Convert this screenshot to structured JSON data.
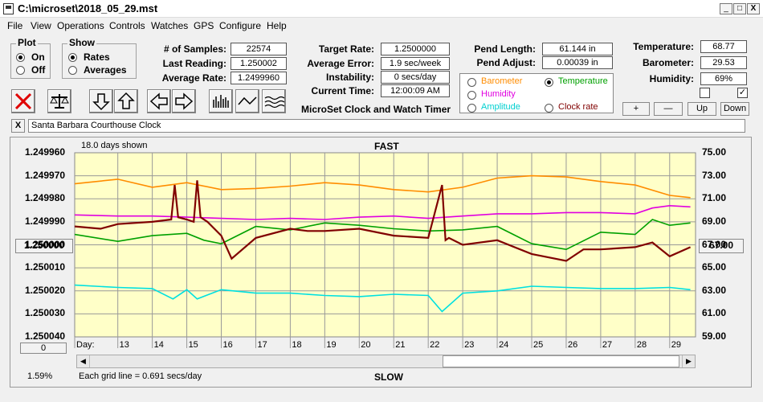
{
  "window": {
    "title": "C:\\microset\\2018_05_29.mst",
    "minimize": "_",
    "maximize": "□",
    "close": "X"
  },
  "menu": [
    "File",
    "View",
    "Operations",
    "Controls",
    "Watches",
    "GPS",
    "Configure",
    "Help"
  ],
  "plot_group": {
    "title": "Plot",
    "options": [
      "On",
      "Off"
    ],
    "selected": "On"
  },
  "show_group": {
    "title": "Show",
    "options": [
      "Rates",
      "Averages"
    ],
    "selected": "Rates"
  },
  "stats": {
    "samples_label": "# of Samples:",
    "samples": "22574",
    "last_reading_label": "Last Reading:",
    "last_reading": "1.250002",
    "average_rate_label": "Average Rate:",
    "average_rate": "1.2499960"
  },
  "rates": {
    "target_rate_label": "Target Rate:",
    "target_rate": "1.2500000",
    "average_error_label": "Average Error:",
    "average_error": "1.9 sec/week",
    "instability_label": "Instability:",
    "instability": "0 secs/day",
    "current_time_label": "Current Time:",
    "current_time": "12:00:09 AM"
  },
  "app_name": "MicroSet Clock and Watch Timer",
  "pendulum": {
    "length_label": "Pend Length:",
    "length": "61.144 in",
    "adjust_label": "Pend Adjust:",
    "adjust": "0.00039 in"
  },
  "sensor_options": {
    "barometer": "Barometer",
    "temperature": "Temperature",
    "humidity": "Humidity",
    "amplitude": "Amplitude",
    "clock_rate": "Clock rate",
    "selected": "Temperature"
  },
  "environment": {
    "temperature_label": "Temperature:",
    "temperature": "68.77",
    "barometer_label": "Barometer:",
    "barometer": "29.53",
    "humidity_label": "Humidity:",
    "humidity": "69%"
  },
  "adjust_buttons": {
    "plus": "+",
    "minus": "—",
    "up": "Up",
    "down": "Down"
  },
  "clock_name": "Santa Barbara Courthouse Clock",
  "clear_button": "X",
  "colors": {
    "barometer": "#ff8c00",
    "temperature": "#00a000",
    "humidity": "#e000e0",
    "amplitude": "#00e0e0",
    "clock_rate": "#800000",
    "plot_bg": "#ffffc8"
  },
  "chart": {
    "days_shown": "18.0 days shown",
    "top_label": "FAST",
    "bottom_label": "SLOW",
    "grid_note": "Each grid line = 0.691 secs/day",
    "percent": "1.59%",
    "day_label": "Day:",
    "left_button": "1.250000",
    "right_button": "67.00",
    "bottom_left_button": "0"
  },
  "chart_data": {
    "type": "line",
    "x_label": "Day:",
    "x_ticks": [
      "13",
      "14",
      "15",
      "16",
      "17",
      "18",
      "19",
      "20",
      "21",
      "22",
      "23",
      "24",
      "25",
      "26",
      "27",
      "28",
      "29"
    ],
    "xlim": [
      11.75,
      29.75
    ],
    "left_axis": {
      "ticks": [
        "1.249960",
        "1.249970",
        "1.249980",
        "1.249990",
        "1.250000",
        "1.250010",
        "1.250020",
        "1.250030",
        "1.250040"
      ],
      "range": [
        1.24996,
        1.25004
      ],
      "inverted": true
    },
    "right_axis": {
      "ticks": [
        "75.00",
        "73.00",
        "71.00",
        "69.00",
        "67.00",
        "65.00",
        "63.00",
        "61.00",
        "59.00"
      ],
      "range": [
        59,
        75
      ]
    },
    "series": [
      {
        "name": "Barometer",
        "color": "#ff8c00",
        "x": [
          11.75,
          13,
          14,
          15,
          16,
          17,
          18,
          19,
          20,
          21,
          22,
          23,
          24,
          25,
          26,
          27,
          28,
          29,
          29.6
        ],
        "y": [
          72.3,
          72.7,
          72.0,
          72.4,
          71.8,
          71.9,
          72.1,
          72.4,
          72.2,
          71.8,
          71.6,
          72.0,
          72.8,
          73.0,
          72.9,
          72.5,
          72.2,
          71.3,
          71.1
        ]
      },
      {
        "name": "Temperature",
        "color": "#00a000",
        "x": [
          11.75,
          13,
          14,
          15,
          15.5,
          16,
          17,
          18,
          19,
          20,
          21,
          22,
          23,
          24,
          25,
          26,
          27,
          28,
          28.5,
          29,
          29.6
        ],
        "y": [
          67.9,
          67.3,
          67.8,
          68.0,
          67.4,
          67.1,
          68.6,
          68.3,
          68.9,
          68.7,
          68.4,
          68.2,
          68.3,
          68.6,
          67.1,
          66.6,
          68.1,
          67.9,
          69.2,
          68.7,
          68.9
        ]
      },
      {
        "name": "Humidity",
        "color": "#e000e0",
        "x": [
          11.75,
          13,
          14,
          15,
          16,
          17,
          18,
          19,
          20,
          21,
          22,
          23,
          24,
          25,
          26,
          27,
          28,
          28.5,
          29,
          29.6
        ],
        "y": [
          69.6,
          69.5,
          69.5,
          69.4,
          69.3,
          69.2,
          69.3,
          69.2,
          69.4,
          69.5,
          69.3,
          69.5,
          69.7,
          69.7,
          69.8,
          69.8,
          69.7,
          70.2,
          70.4,
          70.3
        ]
      },
      {
        "name": "Amplitude",
        "color": "#00e0e0",
        "x": [
          11.75,
          13,
          14,
          14.6,
          15,
          15.3,
          16,
          17,
          18,
          19,
          20,
          21,
          22,
          22.4,
          23,
          24,
          25,
          26,
          27,
          28,
          29,
          29.6
        ],
        "y": [
          63.5,
          63.3,
          63.2,
          62.3,
          63.1,
          62.3,
          63.1,
          62.8,
          62.8,
          62.6,
          62.5,
          62.7,
          62.6,
          61.2,
          62.8,
          63.0,
          63.4,
          63.3,
          63.2,
          63.2,
          63.3,
          63.1
        ]
      },
      {
        "name": "Clock rate",
        "color": "#800000",
        "x": [
          11.75,
          12.5,
          13,
          14,
          14.55,
          14.65,
          14.75,
          15,
          15.2,
          15.3,
          15.4,
          15.6,
          16,
          16.3,
          17,
          18,
          18.5,
          19,
          20,
          21,
          22,
          22.4,
          22.5,
          22.6,
          23,
          24,
          25,
          26,
          26.5,
          27,
          28,
          28.5,
          29,
          29.6
        ],
        "y": [
          1.249992,
          1.249993,
          1.249991,
          1.24999,
          1.249989,
          1.249974,
          1.249988,
          1.249989,
          1.24999,
          1.249972,
          1.249988,
          1.24999,
          1.249996,
          1.250006,
          1.249997,
          1.249993,
          1.249994,
          1.249994,
          1.249993,
          1.249996,
          1.249997,
          1.249974,
          1.249998,
          1.249997,
          1.25,
          1.249998,
          1.250004,
          1.250007,
          1.250002,
          1.250002,
          1.250001,
          1.249999,
          1.250005,
          1.250001
        ]
      }
    ]
  }
}
